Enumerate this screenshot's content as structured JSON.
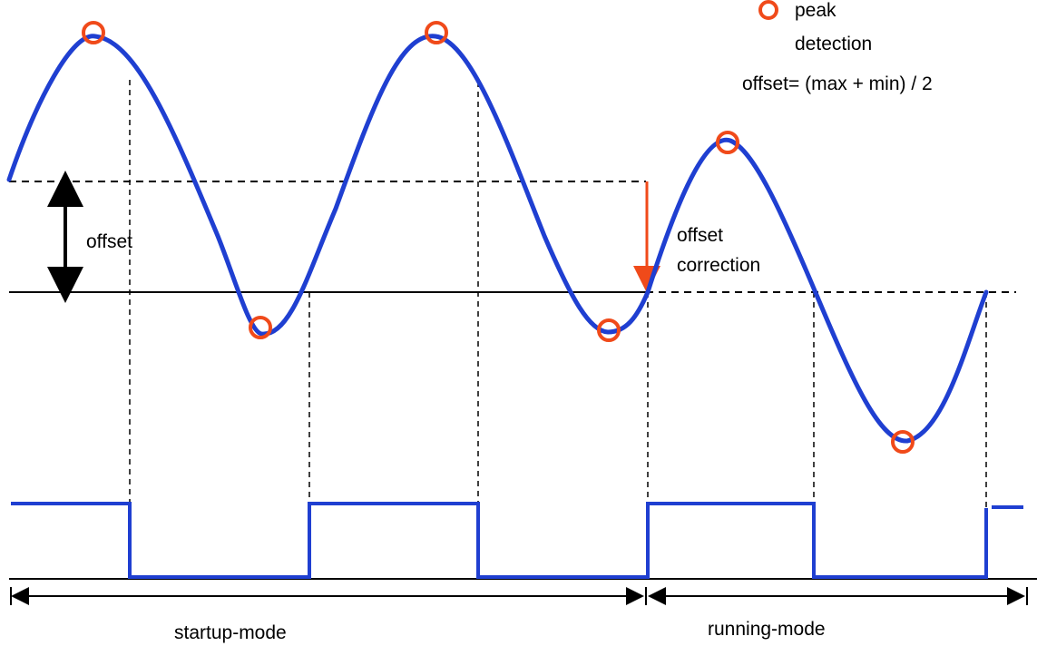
{
  "legend": {
    "marker_icon": "circle-outline-icon",
    "label_line1": "peak",
    "label_line2": "detection",
    "formula": "offset= (max + min) / 2"
  },
  "annotations": {
    "offset": "offset",
    "offset_correction_line1": "offset",
    "offset_correction_line2": "correction"
  },
  "modes": {
    "startup": "startup-mode",
    "running": "running-mode"
  },
  "colors": {
    "signal": "#1f3fd1",
    "peak_marker": "#f04a1a",
    "correction_arrow": "#f04a1a",
    "lines": "#000000"
  }
}
